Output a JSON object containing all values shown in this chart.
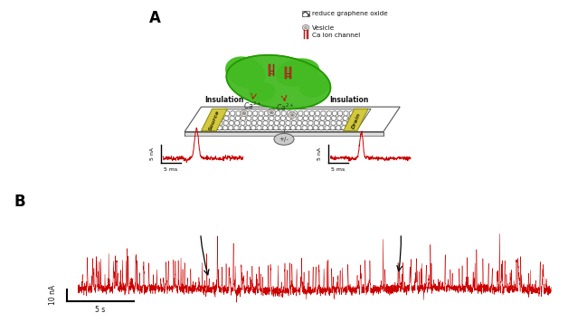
{
  "fig_width": 6.28,
  "fig_height": 3.67,
  "dpi": 100,
  "bg_color": "#ffffff",
  "panel_A_label": "A",
  "panel_B_label": "B",
  "legend_items": [
    "reduce graphene oxide",
    "Vesicle",
    "Ca Ion channel"
  ],
  "insulation_label": "Insulation",
  "source_label": "Source",
  "drain_label": "Drain",
  "signal_color": "#cc0000",
  "ylabel_main": "10 nA",
  "xlabel_main": "5 s",
  "inset1_ylabel": "5 nA",
  "inset1_xlabel": "5 ms",
  "inset2_ylabel": "5 nA",
  "inset2_xlabel": "5 ms",
  "n_points": 5000
}
